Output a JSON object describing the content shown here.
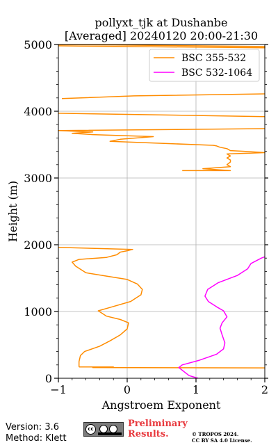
{
  "chart_data": {
    "type": "line",
    "title": "pollyxt_tjk at Dushanbe",
    "subtitle": "[Averaged] 20240120 20:00-21:30",
    "xlabel": "Angstroem Exponent",
    "ylabel": "Height (m)",
    "xlim": [
      -1,
      2
    ],
    "ylim": [
      0,
      5000
    ],
    "xticks": [
      -1,
      0,
      1,
      2
    ],
    "yticks": [
      0,
      1000,
      2000,
      3000,
      4000,
      5000
    ],
    "grid": true,
    "legend_position": "top-right",
    "series": [
      {
        "name": "BSC 355-532",
        "color": "#ff8c00",
        "segments": [
          [
            [
              -0.7,
              170
            ],
            [
              -0.2,
              170
            ],
            [
              -0.5,
              160
            ],
            [
              2.0,
              155
            ]
          ],
          [
            [
              -0.7,
              170
            ],
            [
              -0.7,
              250
            ],
            [
              -0.68,
              340
            ],
            [
              -0.62,
              400
            ],
            [
              -0.4,
              480
            ],
            [
              -0.25,
              560
            ],
            [
              -0.1,
              650
            ],
            [
              0.0,
              740
            ],
            [
              0.02,
              830
            ],
            [
              -0.1,
              880
            ],
            [
              -0.3,
              930
            ],
            [
              -0.42,
              1010
            ],
            [
              -0.25,
              1060
            ],
            [
              0.05,
              1150
            ],
            [
              0.2,
              1250
            ],
            [
              0.22,
              1330
            ],
            [
              0.15,
              1410
            ],
            [
              0.0,
              1480
            ],
            [
              -0.3,
              1530
            ],
            [
              -0.6,
              1580
            ],
            [
              -0.75,
              1680
            ],
            [
              -0.8,
              1740
            ],
            [
              -0.7,
              1780
            ],
            [
              -0.3,
              1810
            ],
            [
              -0.15,
              1850
            ],
            [
              -0.1,
              1890
            ],
            [
              0.0,
              1910
            ],
            [
              0.08,
              1930
            ],
            [
              -1.0,
              1960
            ]
          ],
          [
            [
              0.8,
              3110
            ],
            [
              1.5,
              3110
            ],
            [
              1.1,
              3140
            ],
            [
              1.5,
              3170
            ],
            [
              1.45,
              3200
            ],
            [
              1.5,
              3240
            ],
            [
              1.5,
              3270
            ],
            [
              1.45,
              3300
            ],
            [
              1.5,
              3330
            ],
            [
              1.45,
              3360
            ],
            [
              2.0,
              3380
            ],
            [
              1.7,
              3400
            ],
            [
              1.5,
              3410
            ],
            [
              1.45,
              3440
            ],
            [
              1.35,
              3460
            ],
            [
              1.3,
              3480
            ],
            [
              1.25,
              3490
            ],
            [
              -0.25,
              3550
            ],
            [
              -0.1,
              3580
            ],
            [
              0.38,
              3620
            ],
            [
              -0.5,
              3650
            ],
            [
              -0.8,
              3670
            ],
            [
              -0.5,
              3690
            ],
            [
              -1.0,
              3710
            ],
            [
              2.0,
              3740
            ]
          ],
          [
            [
              -1.0,
              3970
            ],
            [
              2.0,
              3920
            ]
          ],
          [
            [
              -0.95,
              4190
            ],
            [
              0.1,
              4230
            ],
            [
              2.0,
              4260
            ]
          ],
          [
            [
              -1.0,
              4980
            ],
            [
              2.0,
              4950
            ],
            [
              2.0,
              4970
            ],
            [
              -1.0,
              5000
            ]
          ]
        ]
      },
      {
        "name": "BSC 532-1064",
        "color": "#ff00ff",
        "segments": [
          [
            [
              1.03,
              0
            ],
            [
              0.9,
              40
            ],
            [
              0.85,
              80
            ],
            [
              0.75,
              160
            ],
            [
              0.8,
              200
            ],
            [
              1.05,
              270
            ],
            [
              1.3,
              360
            ],
            [
              1.4,
              440
            ],
            [
              1.42,
              530
            ],
            [
              1.38,
              650
            ],
            [
              1.35,
              750
            ],
            [
              1.38,
              830
            ],
            [
              1.45,
              920
            ],
            [
              1.4,
              1010
            ],
            [
              1.3,
              1070
            ],
            [
              1.18,
              1150
            ],
            [
              1.13,
              1230
            ],
            [
              1.17,
              1330
            ],
            [
              1.32,
              1430
            ],
            [
              1.6,
              1540
            ],
            [
              1.75,
              1640
            ],
            [
              1.8,
              1720
            ],
            [
              1.95,
              1800
            ],
            [
              2.0,
              1820
            ]
          ]
        ]
      }
    ]
  },
  "footer": {
    "version": "Version: 3.6",
    "method": "Method: Klett",
    "preliminary_line1": "Preliminary",
    "preliminary_line2": "Results.",
    "copyright_line1": "© TROPOS 2024.",
    "copyright_line2": "CC BY SA 4.0 License."
  },
  "license_badge": {
    "icon": "cc-by-sa-icon"
  }
}
